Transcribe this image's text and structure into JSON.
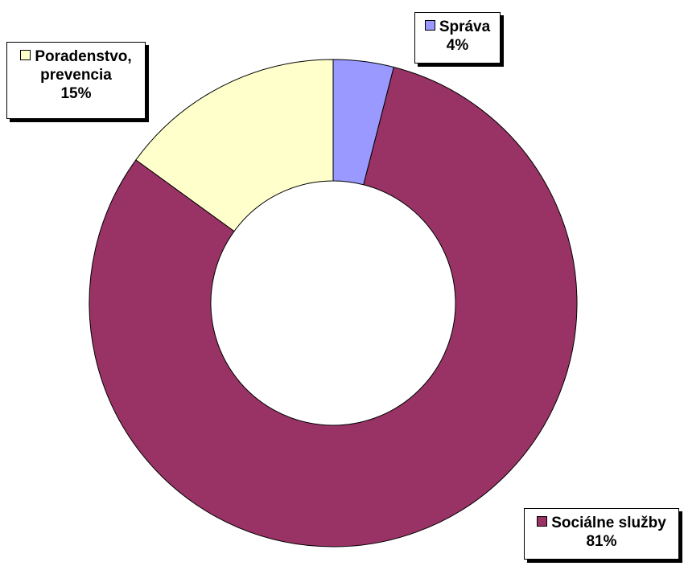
{
  "chart_data": {
    "type": "pie",
    "donut": true,
    "slices": [
      {
        "label": "Správa",
        "value": 4,
        "value_label": "4%",
        "color": "#9999ff"
      },
      {
        "label": "Sociálne služby",
        "value": 81,
        "value_label": "81%",
        "color": "#993366"
      },
      {
        "label": "Poradenstvo, prevencia",
        "label_lines": [
          "Poradenstvo,",
          "prevencia"
        ],
        "value": 15,
        "value_label": "15%",
        "color": "#ffffcc"
      }
    ]
  }
}
